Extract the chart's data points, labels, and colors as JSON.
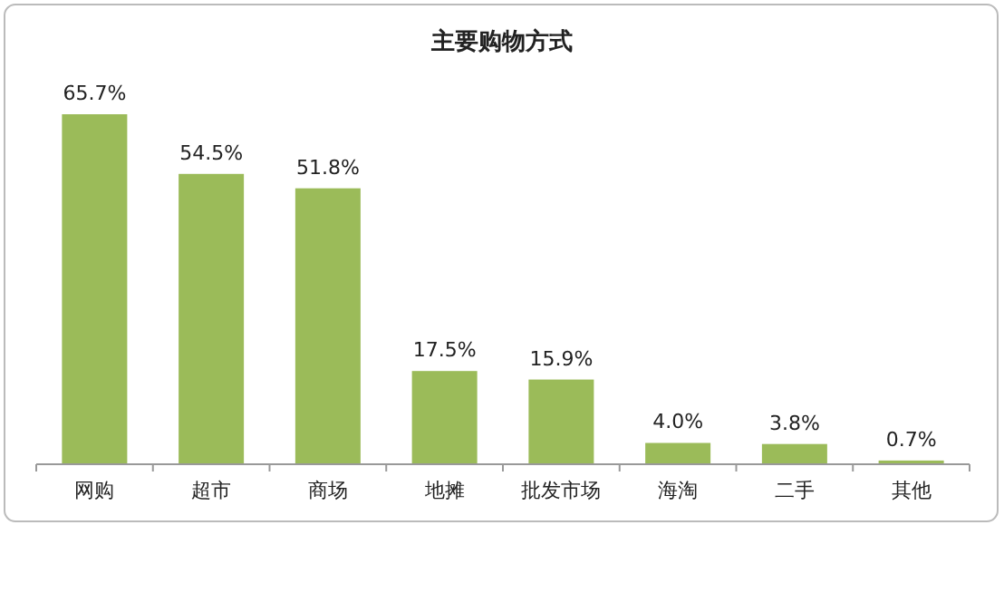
{
  "chart_data": {
    "type": "bar",
    "title": "主要购物方式",
    "categories": [
      "网购",
      "超市",
      "商场",
      "地摊",
      "批发市场",
      "海淘",
      "二手",
      "其他"
    ],
    "values": [
      65.7,
      54.5,
      51.8,
      17.5,
      15.9,
      4.0,
      3.8,
      0.7
    ],
    "value_labels": [
      "65.7%",
      "54.5%",
      "51.8%",
      "17.5%",
      "15.9%",
      "4.0%",
      "3.8%",
      "0.7%"
    ],
    "color": "#9bbb59"
  }
}
